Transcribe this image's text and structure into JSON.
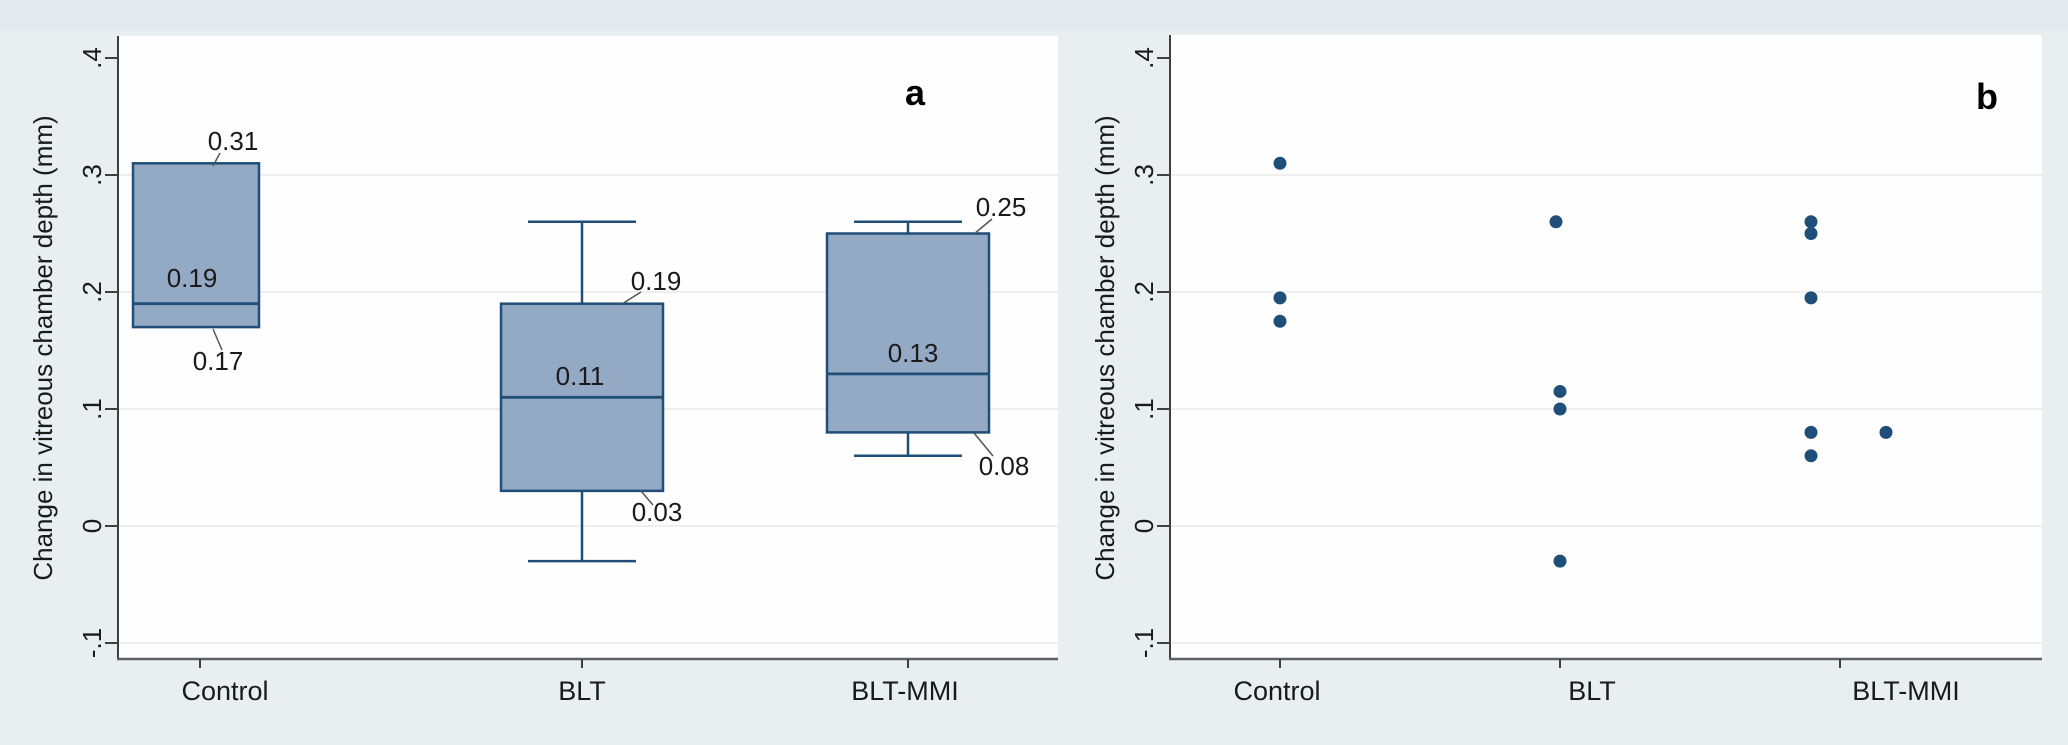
{
  "colors": {
    "page_bg": "#e9eef1",
    "page_top_band": "#e3ebee",
    "plot_bg": "#fefefe",
    "grid": "#e9e9e9",
    "axis": "#3f3f3f",
    "x_axis": "#5f5f5f",
    "text": "#1a1a1a",
    "box_fill": "#94a9c3",
    "box_border": "#1f4e79",
    "median_line": "#1f4e79",
    "whisker": "#1f4e79",
    "point": "#1f4e79",
    "connector": "#555555"
  },
  "chart_data": [
    {
      "type": "box",
      "panel_letter": "a",
      "ylabel": "Change in vitreous chamber depth (mm)",
      "ylim": [
        -0.11,
        0.42
      ],
      "grid": true,
      "yticks": [
        {
          "v": 0.4,
          "label": ".4"
        },
        {
          "v": 0.3,
          "label": ".3"
        },
        {
          "v": 0.2,
          "label": ".2"
        },
        {
          "v": 0.1,
          "label": ".1"
        },
        {
          "v": 0.0,
          "label": "0"
        },
        {
          "v": -0.1,
          "label": "-.1"
        }
      ],
      "grid_at": [
        0.3,
        0.2,
        0.1,
        0.0,
        -0.1
      ],
      "categories": [
        "Control",
        "BLT",
        "BLT-MMI"
      ],
      "boxes": [
        {
          "category": "Control",
          "q1": 0.17,
          "median": 0.19,
          "q3": 0.31,
          "whisker_low": null,
          "whisker_high": null,
          "annotations": [
            {
              "stat": "q3",
              "text": "0.31"
            },
            {
              "stat": "median",
              "text": "0.19"
            },
            {
              "stat": "q1",
              "text": "0.17"
            }
          ]
        },
        {
          "category": "BLT",
          "q1": 0.03,
          "median": 0.11,
          "q3": 0.19,
          "whisker_low": -0.03,
          "whisker_high": 0.26,
          "annotations": [
            {
              "stat": "q3",
              "text": "0.19"
            },
            {
              "stat": "median",
              "text": "0.11"
            },
            {
              "stat": "q1",
              "text": "0.03"
            }
          ]
        },
        {
          "category": "BLT-MMI",
          "q1": 0.08,
          "median": 0.13,
          "q3": 0.25,
          "whisker_low": 0.06,
          "whisker_high": 0.26,
          "annotations": [
            {
              "stat": "q3",
              "text": "0.25"
            },
            {
              "stat": "median",
              "text": "0.13"
            },
            {
              "stat": "q1",
              "text": "0.08"
            }
          ]
        }
      ]
    },
    {
      "type": "scatter",
      "panel_letter": "b",
      "ylabel": "Change in vitreous chamber depth (mm)",
      "ylim": [
        -0.11,
        0.42
      ],
      "grid": true,
      "yticks": [
        {
          "v": 0.4,
          "label": ".4"
        },
        {
          "v": 0.3,
          "label": ".3"
        },
        {
          "v": 0.2,
          "label": ".2"
        },
        {
          "v": 0.1,
          "label": ".1"
        },
        {
          "v": 0.0,
          "label": "0"
        },
        {
          "v": -0.1,
          "label": "-.1"
        }
      ],
      "grid_at": [
        0.3,
        0.2,
        0.1,
        0.0,
        -0.1
      ],
      "categories": [
        "Control",
        "BLT",
        "BLT-MMI"
      ],
      "series": [
        {
          "category": "Control",
          "values": [
            0.31,
            0.195,
            0.175
          ]
        },
        {
          "category": "BLT",
          "values": [
            0.26,
            0.115,
            0.1,
            -0.03
          ]
        },
        {
          "category": "BLT-MMI",
          "values": [
            0.26,
            0.25,
            0.195,
            0.08,
            0.08,
            0.06
          ]
        }
      ]
    }
  ]
}
